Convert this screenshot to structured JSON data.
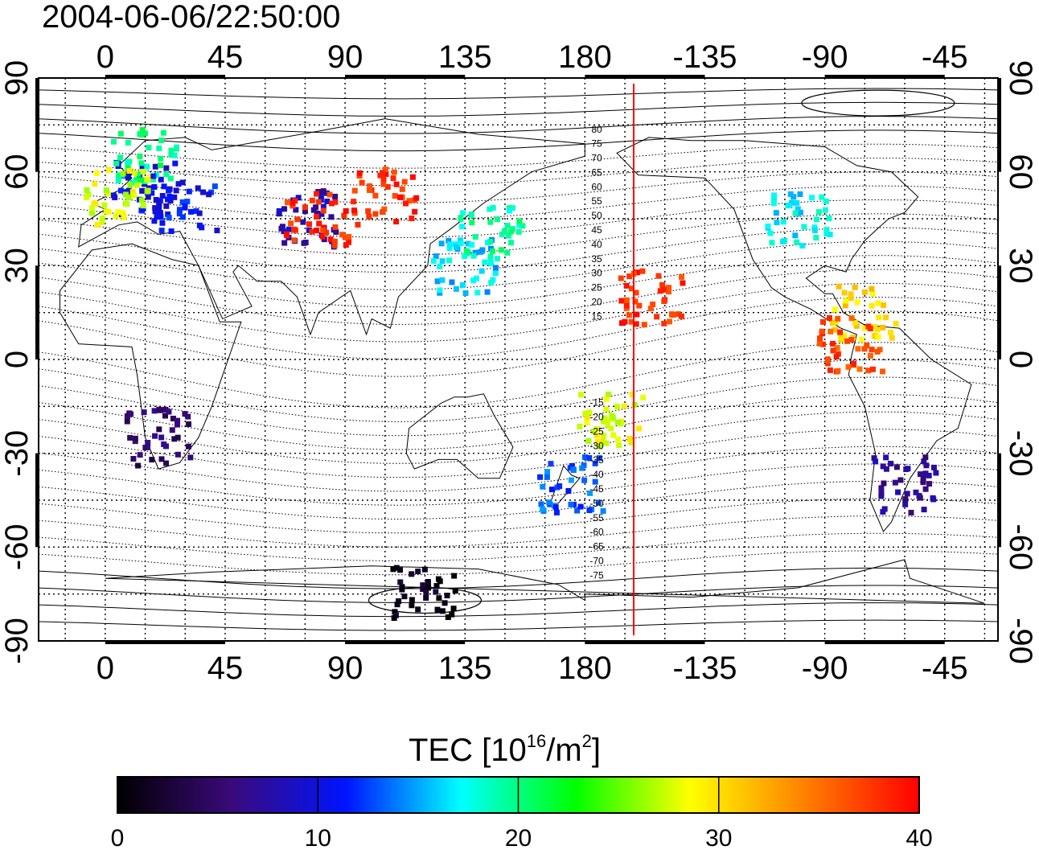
{
  "title": "2004-06-06/22:50:00",
  "top_lon_labels": [
    "0",
    "45",
    "90",
    "135",
    "180",
    "-135",
    "-90",
    "-45"
  ],
  "bottom_lon_labels": [
    "0",
    "45",
    "90",
    "135",
    "180",
    "-135",
    "-90",
    "-45"
  ],
  "lat_labels": [
    "90",
    "60",
    "30",
    "0",
    "-30",
    "-60",
    "-90"
  ],
  "geomag_lat_labels": [
    "80",
    "75",
    "70",
    "65",
    "60",
    "55",
    "50",
    "45",
    "40",
    "35",
    "30",
    "25",
    "20",
    "15",
    "-15",
    "-20",
    "-25",
    "-30",
    "-35",
    "-40",
    "-45",
    "-50",
    "-55",
    "-60",
    "-65",
    "-70",
    "-75"
  ],
  "colorbar": {
    "label_main": "TEC  [10",
    "label_exp": "16",
    "label_unit": "/m",
    "label_exp2": "2",
    "label_close": "]",
    "ticks": [
      "0",
      "10",
      "20",
      "30",
      "40"
    ],
    "range": [
      0,
      40
    ],
    "stops": [
      "#000000",
      "#3a0a7a",
      "#0014ff",
      "#00ffff",
      "#00ff00",
      "#ffff00",
      "#ff8000",
      "#ff0000"
    ]
  },
  "chart_data": {
    "type": "heatmap",
    "title": "2004-06-06/22:50:00",
    "x_range_lon": [
      -25,
      335
    ],
    "y_range_lat": [
      -90,
      90
    ],
    "x_ticks_lon": [
      0,
      45,
      90,
      135,
      180,
      225,
      270,
      315
    ],
    "y_ticks_lat": [
      90,
      60,
      30,
      0,
      -30,
      -60,
      -90
    ],
    "colorbar_range": [
      0,
      40
    ],
    "meridian_marker_lon": 200,
    "cells": [
      {
        "lon": 15,
        "lat": 55,
        "tec": 10
      },
      {
        "lon": 15,
        "lat": 65,
        "tec": 20
      },
      {
        "lon": 5,
        "lat": 52,
        "tec": 28
      },
      {
        "lon": 30,
        "lat": 50,
        "tec": 11
      },
      {
        "lon": 75,
        "lat": 45,
        "tec": 8
      },
      {
        "lon": 80,
        "lat": 45,
        "tec": 38
      },
      {
        "lon": 105,
        "lat": 52,
        "tec": 38
      },
      {
        "lon": 135,
        "lat": 30,
        "tec": 16
      },
      {
        "lon": 145,
        "lat": 40,
        "tec": 19
      },
      {
        "lon": 205,
        "lat": 20,
        "tec": 38
      },
      {
        "lon": 190,
        "lat": -20,
        "tec": 28
      },
      {
        "lon": 175,
        "lat": -40,
        "tec": 13
      },
      {
        "lon": 260,
        "lat": 45,
        "tec": 17
      },
      {
        "lon": 285,
        "lat": 15,
        "tec": 30
      },
      {
        "lon": 280,
        "lat": 5,
        "tec": 37
      },
      {
        "lon": 300,
        "lat": -40,
        "tec": 7
      },
      {
        "lon": 20,
        "lat": -25,
        "tec": 5
      },
      {
        "lon": 120,
        "lat": -75,
        "tec": 1
      }
    ]
  }
}
